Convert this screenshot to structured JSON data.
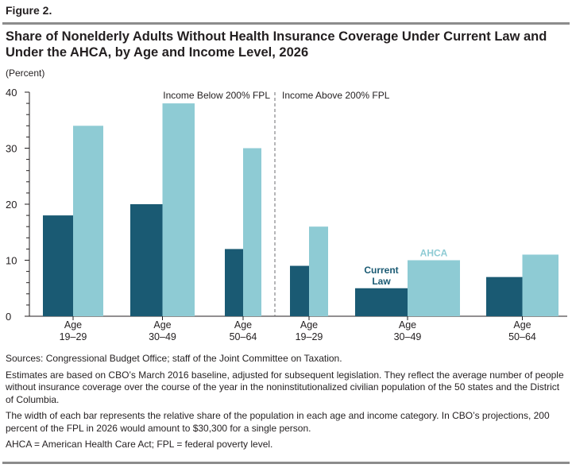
{
  "figure_label": "Figure 2.",
  "title": "Share of Nonelderly Adults Without Health Insurance Coverage Under Current Law and Under the AHCA, by Age and Income Level, 2026",
  "notes": {
    "sources": "Sources: Congressional Budget Office; staff of the Joint Committee on Taxation.",
    "estimates": "Estimates are based on CBO’s March 2016 baseline, adjusted for subsequent legislation. They reflect the average number of people without insurance coverage over the course of the year in the noninstitutionalized civilian population of the 50 states and the District of Columbia.",
    "width": "The width of each bar represents the relative share of the population in each age and income category. In CBO’s projections, 200 percent of the FPL in 2026 would amount to $30,300 for a single person.",
    "abbrev": "AHCA = American Health Care Act; FPL = federal poverty level."
  },
  "chart_data": {
    "type": "bar",
    "ylabel": "(Percent)",
    "ylim": [
      0,
      40
    ],
    "yticks": [
      0,
      10,
      20,
      30,
      40
    ],
    "grid": false,
    "colors": {
      "current_law": "#1a5a73",
      "ahca": "#8ecbd4",
      "axis": "#231f20",
      "divider": "#6d6e71"
    },
    "groups": [
      {
        "label": "Income Below 200% FPL",
        "categories": [
          "Age 19–29",
          "Age 30–49",
          "Age 50–64"
        ]
      },
      {
        "label": "Income Above 200% FPL",
        "categories": [
          "Age 19–29",
          "Age 30–49",
          "Age 50–64"
        ]
      }
    ],
    "categories": [
      {
        "line1": "Age",
        "line2": "19–29",
        "group": 0,
        "relative_width": 0.4
      },
      {
        "line1": "Age",
        "line2": "30–49",
        "group": 0,
        "relative_width": 0.43
      },
      {
        "line1": "Age",
        "line2": "50–64",
        "group": 0,
        "relative_width": 0.24
      },
      {
        "line1": "Age",
        "line2": "19–29",
        "group": 1,
        "relative_width": 0.24
      },
      {
        "line1": "Age",
        "line2": "30–49",
        "group": 1,
        "relative_width": 0.67
      },
      {
        "line1": "Age",
        "line2": "50–64",
        "group": 1,
        "relative_width": 0.52
      }
    ],
    "series": [
      {
        "name": "Current Law",
        "color": "#1a5a73",
        "values": [
          18,
          20,
          12,
          9,
          5,
          7
        ]
      },
      {
        "name": "AHCA",
        "color": "#8ecbd4",
        "values": [
          34,
          38,
          30,
          16,
          10,
          11
        ]
      }
    ],
    "series_labels": [
      {
        "series": 0,
        "lines": [
          "Current",
          "Law"
        ],
        "category": 4
      },
      {
        "series": 1,
        "lines": [
          "AHCA"
        ],
        "category": 4
      }
    ]
  }
}
